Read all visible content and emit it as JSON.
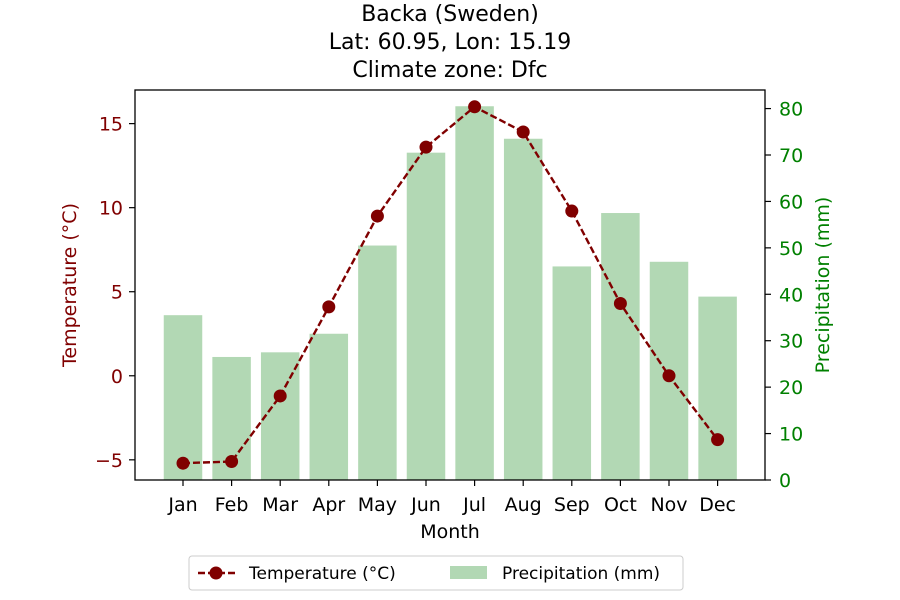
{
  "chart_data": {
    "type": "bar+line",
    "title_lines": [
      "Backa (Sweden)",
      "Lat: 60.95, Lon: 15.19",
      "Climate zone: Dfc"
    ],
    "xlabel": "Month",
    "categories": [
      "Jan",
      "Feb",
      "Mar",
      "Apr",
      "May",
      "Jun",
      "Jul",
      "Aug",
      "Sep",
      "Oct",
      "Nov",
      "Dec"
    ],
    "temperature": {
      "name": "Temperature (°C)",
      "axis_label": "Temperature (°C)",
      "values": [
        -5.2,
        -5.1,
        -1.2,
        4.1,
        9.5,
        13.6,
        16.0,
        14.5,
        9.8,
        4.3,
        0.0,
        -3.8
      ],
      "ylim": [
        -6.2,
        17.0
      ],
      "ticks": [
        -5,
        0,
        5,
        10,
        15
      ],
      "tick_labels": [
        "−5",
        "0",
        "5",
        "10",
        "15"
      ],
      "color": "#800000"
    },
    "precipitation": {
      "name": "Precipitation (mm)",
      "axis_label": "Precipitation (mm)",
      "values": [
        35.5,
        26.5,
        27.5,
        31.5,
        50.5,
        70.5,
        80.5,
        73.5,
        46.0,
        57.5,
        47.0,
        39.5
      ],
      "ylim": [
        0,
        84
      ],
      "ticks": [
        0,
        10,
        20,
        30,
        40,
        50,
        60,
        70,
        80
      ],
      "tick_labels": [
        "0",
        "10",
        "20",
        "30",
        "40",
        "50",
        "60",
        "70",
        "80"
      ],
      "color": "#b2d8b4",
      "axis_color": "#008000"
    },
    "legend": {
      "placement": "bottom-center",
      "entries": [
        "Temperature (°C)",
        "Precipitation (mm)"
      ]
    },
    "grid": false
  }
}
